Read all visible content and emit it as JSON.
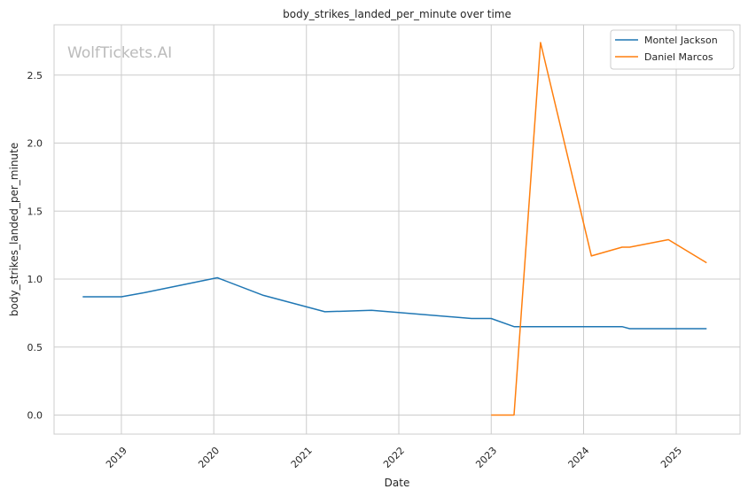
{
  "chart_data": {
    "type": "line",
    "title": "body_strikes_landed_per_minute over time",
    "xlabel": "Date",
    "ylabel": "body_strikes_landed_per_minute",
    "watermark": "WolfTickets.AI",
    "xlim": [
      "2018-04-10",
      "2025-09-10"
    ],
    "ylim": [
      -0.14,
      2.87
    ],
    "x_ticks": [
      "2019",
      "2020",
      "2021",
      "2022",
      "2023",
      "2024",
      "2025"
    ],
    "y_ticks": [
      "0.0",
      "0.5",
      "1.0",
      "1.5",
      "2.0",
      "2.5"
    ],
    "grid": true,
    "legend_position": "top-right",
    "series": [
      {
        "name": "Montel Jackson",
        "color": "#1f77b4",
        "points": [
          [
            "2018-08-01",
            0.87
          ],
          [
            "2019-01-01",
            0.87
          ],
          [
            "2019-04-01",
            0.9
          ],
          [
            "2020-01-15",
            1.01
          ],
          [
            "2020-07-15",
            0.88
          ],
          [
            "2021-03-15",
            0.76
          ],
          [
            "2021-09-15",
            0.77
          ],
          [
            "2022-10-15",
            0.71
          ],
          [
            "2023-01-01",
            0.71
          ],
          [
            "2023-04-01",
            0.65
          ],
          [
            "2024-06-01",
            0.65
          ],
          [
            "2024-07-01",
            0.635
          ],
          [
            "2025-05-01",
            0.635
          ]
        ]
      },
      {
        "name": "Daniel Marcos",
        "color": "#ff7f0e",
        "points": [
          [
            "2023-01-01",
            0.0
          ],
          [
            "2023-04-01",
            0.0
          ],
          [
            "2023-07-15",
            2.74
          ],
          [
            "2024-02-01",
            1.17
          ],
          [
            "2024-06-01",
            1.235
          ],
          [
            "2024-07-01",
            1.235
          ],
          [
            "2024-12-01",
            1.29
          ],
          [
            "2025-05-01",
            1.12
          ]
        ]
      }
    ]
  }
}
